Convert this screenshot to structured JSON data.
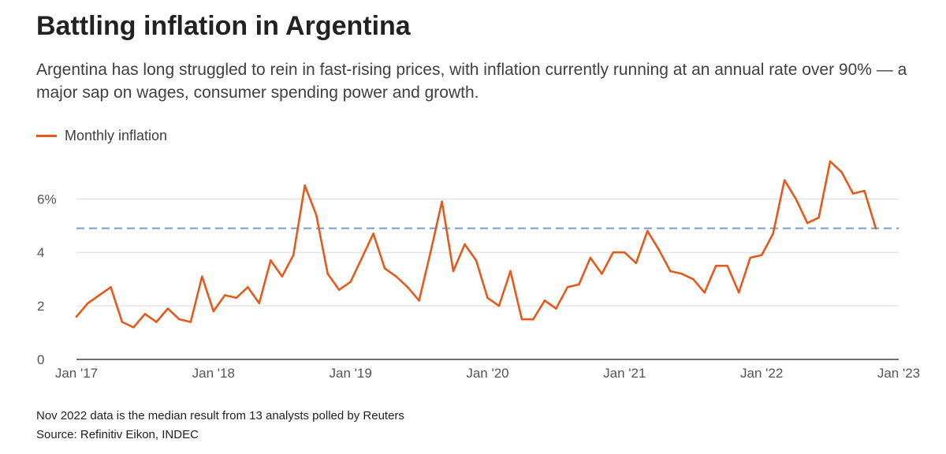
{
  "header": {
    "title": "Battling inflation in Argentina",
    "subtitle": "Argentina has long struggled to rein in fast-rising prices, with inflation currently running at an annual rate over 90% — a major sap on wages, consumer spending power and growth."
  },
  "legend": {
    "label": "Monthly inflation"
  },
  "footer": {
    "note": "Nov 2022 data is the median result from 13 analysts polled by Reuters",
    "source": "Source: Refinitiv Eikon, INDEC"
  },
  "colors": {
    "line": "#e35a1c",
    "reference": "#7a9cc6",
    "grid": "#dcdcdc",
    "axis": "#444444"
  },
  "chart_data": {
    "type": "line",
    "title": "Battling inflation in Argentina",
    "xlabel": "",
    "ylabel": "",
    "ylim": [
      0,
      7.6
    ],
    "grid": true,
    "legend_position": "top-left",
    "y_ticks": [
      0,
      2,
      4,
      6
    ],
    "y_tick_labels": [
      "0",
      "2",
      "4",
      "6%"
    ],
    "x_ticks": [
      "Jan '17",
      "Jan '18",
      "Jan '19",
      "Jan '20",
      "Jan '21",
      "Jan '22",
      "Jan '23"
    ],
    "reference_line": 4.9,
    "series": [
      {
        "name": "Monthly inflation",
        "start": "2017-01",
        "values": [
          1.6,
          2.1,
          2.4,
          2.7,
          1.4,
          1.2,
          1.7,
          1.4,
          1.9,
          1.5,
          1.4,
          3.1,
          1.8,
          2.4,
          2.3,
          2.7,
          2.1,
          3.7,
          3.1,
          3.9,
          6.5,
          5.4,
          3.2,
          2.6,
          2.9,
          3.8,
          4.7,
          3.4,
          3.1,
          2.7,
          2.2,
          4.0,
          5.9,
          3.3,
          4.3,
          3.7,
          2.3,
          2.0,
          3.3,
          1.5,
          1.5,
          2.2,
          1.9,
          2.7,
          2.8,
          3.8,
          3.2,
          4.0,
          4.0,
          3.6,
          4.8,
          4.1,
          3.3,
          3.2,
          3.0,
          2.5,
          3.5,
          3.5,
          2.5,
          3.8,
          3.9,
          4.7,
          6.7,
          6.0,
          5.1,
          5.3,
          7.4,
          7.0,
          6.2,
          6.3,
          4.9
        ]
      }
    ]
  }
}
